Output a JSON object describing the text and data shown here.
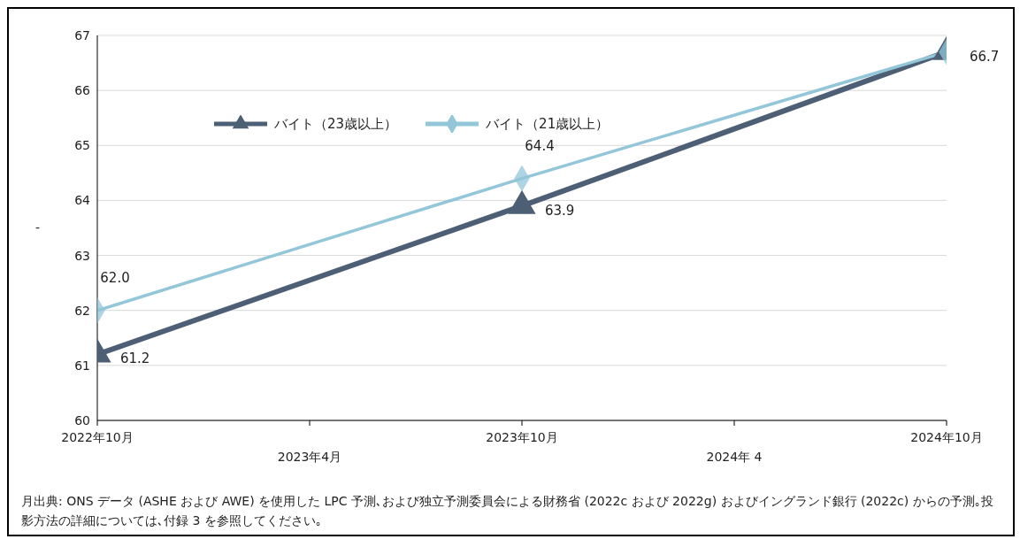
{
  "chart_data": {
    "type": "line",
    "ylabel": "-",
    "categories": [
      "2022年10月",
      "2023年4月",
      "2023年10月",
      "2024年 4",
      "2024年10月"
    ],
    "series": [
      {
        "name": "バイト（23歳以上）",
        "color": "#4d5f75",
        "marker": "triangle",
        "values": [
          61.2,
          null,
          63.9,
          null,
          66.7
        ],
        "value_labels": [
          "61.2",
          null,
          "63.9",
          null,
          "66.7"
        ]
      },
      {
        "name": "バイト（21歳以上）",
        "color": "#92c6d8",
        "marker": "diamond",
        "values": [
          62.0,
          null,
          64.4,
          null,
          66.7
        ],
        "value_labels": [
          "62.0",
          null,
          "64.4",
          null,
          null
        ]
      }
    ],
    "ylim": [
      60,
      67
    ],
    "yticks": [
      60,
      61,
      62,
      63,
      64,
      65,
      66,
      67
    ],
    "grid": "y",
    "legend": "top left",
    "line_style": "solid",
    "annotations": [
      "月出典: ONS データ (ASHE および AWE) を使用した LPC 予測､および独立予測委員会による財務省 (2022c および 2022g) およびイングランド銀行 (2022c) からの予測｡投影方法の詳細については､付録 3 を参照してください｡"
    ]
  }
}
